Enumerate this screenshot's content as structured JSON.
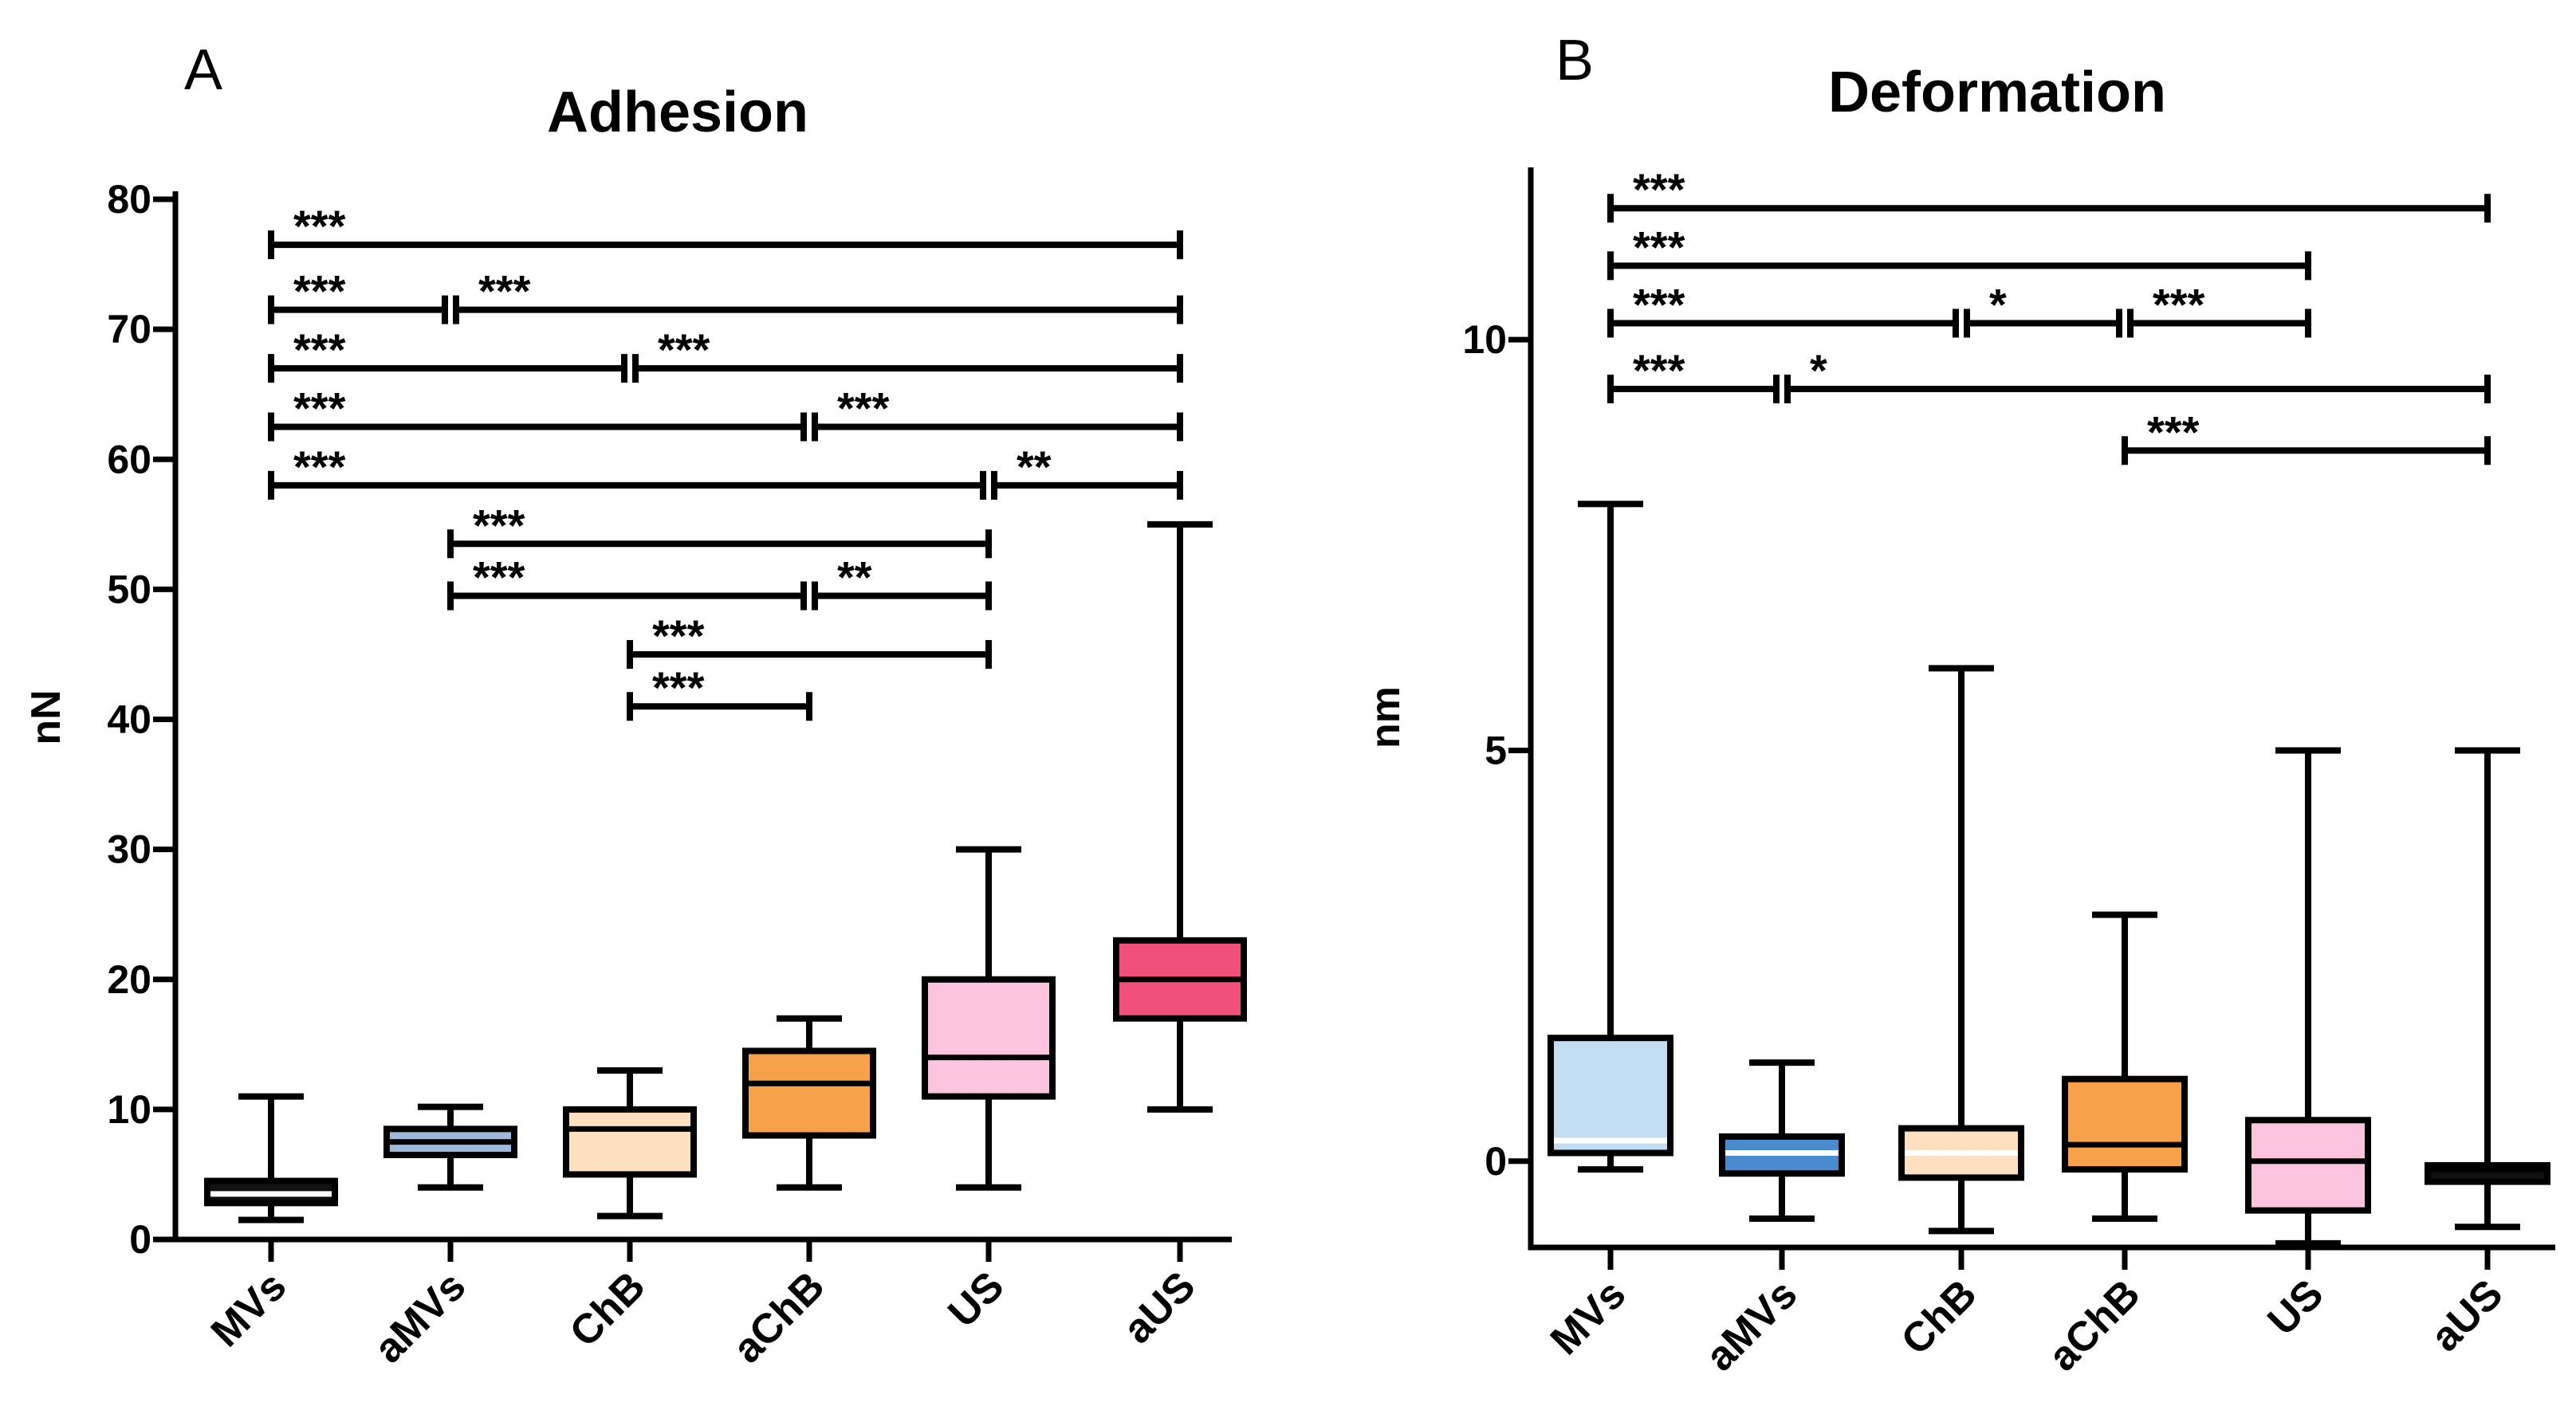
{
  "chart_data": [
    {
      "type": "box",
      "panel": "A",
      "title": "Adhesion",
      "ylabel": "nN",
      "xlabel": "",
      "ylim": [
        0,
        80
      ],
      "yticks": [
        0,
        10,
        20,
        30,
        40,
        50,
        60,
        70,
        80
      ],
      "categories": [
        "MVs",
        "aMVs",
        "ChB",
        "aChB",
        "US",
        "aUS"
      ],
      "boxes": [
        {
          "category": "MVs",
          "min": 1.5,
          "q1": 2.8,
          "median": 3.5,
          "q3": 4.5,
          "max": 11,
          "fill": "#111111",
          "median_color": "#ffffff"
        },
        {
          "category": "aMVs",
          "min": 4,
          "q1": 6.5,
          "median": 7.5,
          "q3": 8.5,
          "max": 10.2,
          "fill": "#9fb9da",
          "median_color": "#000000"
        },
        {
          "category": "ChB",
          "min": 1.8,
          "q1": 5,
          "median": 8.5,
          "q3": 10,
          "max": 13,
          "fill": "#fde0c2",
          "median_color": "#000000"
        },
        {
          "category": "aChB",
          "min": 4,
          "q1": 8,
          "median": 12,
          "q3": 14.5,
          "max": 17,
          "fill": "#f7a24a",
          "median_color": "#000000"
        },
        {
          "category": "US",
          "min": 4,
          "q1": 11,
          "median": 14,
          "q3": 20,
          "max": 30,
          "fill": "#fbc3de",
          "median_color": "#000000"
        },
        {
          "category": "aUS",
          "min": 10,
          "q1": 17,
          "median": 20,
          "q3": 23,
          "max": 55,
          "fill": "#f0507a",
          "median_color": "#000000"
        }
      ],
      "comparisons": [
        {
          "from": "MVs",
          "to": "aUS",
          "y": 76.5,
          "label": "***"
        },
        {
          "from": "MVs",
          "to": "aMVs",
          "y": 71.5,
          "label": "***"
        },
        {
          "from": "aMVs",
          "to": "aUS",
          "y": 71.5,
          "label": "***"
        },
        {
          "from": "MVs",
          "to": "ChB",
          "y": 67,
          "label": "***"
        },
        {
          "from": "ChB",
          "to": "aUS",
          "y": 67,
          "label": "***"
        },
        {
          "from": "MVs",
          "to": "aChB",
          "y": 62.5,
          "label": "***"
        },
        {
          "from": "aChB",
          "to": "aUS",
          "y": 62.5,
          "label": "***"
        },
        {
          "from": "MVs",
          "to": "US",
          "y": 58,
          "label": "***"
        },
        {
          "from": "US",
          "to": "aUS",
          "y": 58,
          "label": "**"
        },
        {
          "from": "aMVs",
          "to": "US",
          "y": 53.5,
          "label": "***"
        },
        {
          "from": "aMVs",
          "to": "aChB",
          "y": 49.5,
          "label": "***"
        },
        {
          "from": "aChB",
          "to": "US",
          "y": 49.5,
          "label": "**"
        },
        {
          "from": "ChB",
          "to": "US",
          "y": 45,
          "label": "***"
        },
        {
          "from": "ChB",
          "to": "aChB",
          "y": 41,
          "label": "***"
        }
      ]
    },
    {
      "type": "box",
      "panel": "B",
      "title": "Deformation",
      "ylabel": "nm",
      "xlabel": "",
      "ylim": [
        -1.05,
        12
      ],
      "yticks": [
        0,
        5,
        10
      ],
      "categories": [
        "MVs",
        "aMVs",
        "ChB",
        "aChB",
        "US",
        "aUS"
      ],
      "boxes": [
        {
          "category": "MVs",
          "min": -0.1,
          "q1": 0.1,
          "median": 0.25,
          "q3": 1.5,
          "max": 8,
          "fill": "#c2dcf2",
          "median_color": "#ffffff"
        },
        {
          "category": "aMVs",
          "min": -0.7,
          "q1": -0.15,
          "median": 0.1,
          "q3": 0.3,
          "max": 1.2,
          "fill": "#4a8bd0",
          "median_color": "#ffffff"
        },
        {
          "category": "ChB",
          "min": -0.85,
          "q1": -0.2,
          "median": 0.1,
          "q3": 0.4,
          "max": 6,
          "fill": "#fde0c2",
          "median_color": "#ffffff"
        },
        {
          "category": "aChB",
          "min": -0.7,
          "q1": -0.1,
          "median": 0.2,
          "q3": 1,
          "max": 3,
          "fill": "#f7a24a",
          "median_color": "#000000"
        },
        {
          "category": "US",
          "min": -1.0,
          "q1": -0.6,
          "median": 0,
          "q3": 0.5,
          "max": 5,
          "fill": "#fbc3de",
          "median_color": "#000000"
        },
        {
          "category": "aUS",
          "min": -0.8,
          "q1": -0.25,
          "median": -0.1,
          "q3": -0.05,
          "max": 5,
          "fill": "#111111",
          "median_color": "#000000"
        }
      ],
      "comparisons": [
        {
          "from": "MVs",
          "to": "aUS",
          "y": 11.6,
          "label": "***"
        },
        {
          "from": "MVs",
          "to": "US",
          "y": 10.9,
          "label": "***"
        },
        {
          "from": "MVs",
          "to": "ChB",
          "y": 10.2,
          "label": "***"
        },
        {
          "from": "ChB",
          "to": "aChB",
          "y": 10.2,
          "label": "*"
        },
        {
          "from": "aChB",
          "to": "US",
          "y": 10.2,
          "label": "***"
        },
        {
          "from": "MVs",
          "to": "aMVs",
          "y": 9.4,
          "label": "***"
        },
        {
          "from": "aMVs",
          "to": "aUS",
          "y": 9.4,
          "label": "*"
        },
        {
          "from": "aChB",
          "to": "aUS",
          "y": 8.65,
          "label": "***"
        }
      ]
    }
  ]
}
